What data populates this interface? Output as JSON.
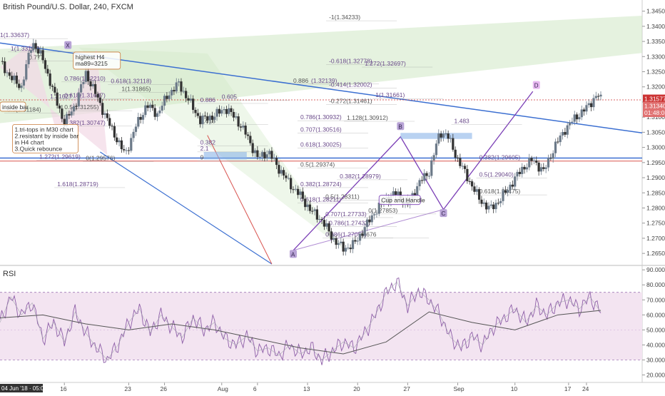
{
  "header": {
    "title": "British Pound/U.S. Dollar, 240, FXCM"
  },
  "rsi_panel": {
    "title": "RSI"
  },
  "colors": {
    "up": "#6c7a89",
    "down": "#333333",
    "trend_blue": "#3b6fd1",
    "fib_purple": "#7b3fb6",
    "red_line": "#d9534f",
    "green_fill": "#cfe8c4",
    "pink_fill": "#f2d9e6",
    "rsi_fill": "#f3e4f1",
    "rsi_line": "#8e5fa8",
    "rsi_ma": "#555555",
    "current_price_bg": "#cc3333"
  },
  "chart_data": [
    {
      "type": "candlestick",
      "title": "British Pound/U.S. Dollar, 240, FXCM",
      "x_tick_labels": [
        "04 Jun '18 · 05:00",
        "16",
        "23",
        "26",
        "Aug",
        "6",
        "13",
        "20",
        "27",
        "Sep",
        "10",
        "17",
        "24"
      ],
      "y_tick_labels": [
        "1.34500",
        "1.34000",
        "1.33500",
        "1.33000",
        "1.32500",
        "1.32000",
        "1.31500",
        "1.31000",
        "1.30500",
        "1.30000",
        "1.29500",
        "1.29000",
        "1.28500",
        "1.28000",
        "1.27500",
        "1.27000",
        "1.26500"
      ],
      "ylim": [
        1.2615,
        1.3468
      ],
      "close_path": [
        [
          0,
          1.3285
        ],
        [
          3,
          1.323
        ],
        [
          6,
          1.32
        ],
        [
          9,
          1.335
        ],
        [
          12,
          1.329
        ],
        [
          15,
          1.318
        ],
        [
          18,
          1.308
        ],
        [
          21,
          1.314
        ],
        [
          24,
          1.3245
        ],
        [
          27,
          1.317
        ],
        [
          30,
          1.309
        ],
        [
          33,
          1.302
        ],
        [
          35,
          1.2975
        ],
        [
          38,
          1.307
        ],
        [
          41,
          1.314
        ],
        [
          44,
          1.311
        ],
        [
          47,
          1.3175
        ],
        [
          50,
          1.321
        ],
        [
          53,
          1.315
        ],
        [
          56,
          1.309
        ],
        [
          60,
          1.3105
        ],
        [
          63,
          1.313
        ],
        [
          66,
          1.3095
        ],
        [
          69,
          1.304
        ],
        [
          72,
          1.2965
        ],
        [
          75,
          1.2985
        ],
        [
          78,
          1.293
        ],
        [
          81,
          1.288
        ],
        [
          84,
          1.284
        ],
        [
          87,
          1.279
        ],
        [
          90,
          1.276
        ],
        [
          93,
          1.27
        ],
        [
          96,
          1.2665
        ],
        [
          99,
          1.268
        ],
        [
          102,
          1.2735
        ],
        [
          105,
          1.279
        ],
        [
          108,
          1.283
        ],
        [
          111,
          1.285
        ],
        [
          114,
          1.281
        ],
        [
          117,
          1.288
        ],
        [
          120,
          1.292
        ],
        [
          123,
          1.305
        ],
        [
          125,
          1.3042
        ],
        [
          128,
          1.296
        ],
        [
          131,
          1.2895
        ],
        [
          134,
          1.283
        ],
        [
          137,
          1.2795
        ],
        [
          140,
          1.283
        ],
        [
          143,
          1.288
        ],
        [
          146,
          1.293
        ],
        [
          149,
          1.296
        ],
        [
          152,
          1.292
        ],
        [
          155,
          1.3
        ],
        [
          158,
          1.306
        ],
        [
          161,
          1.31
        ],
        [
          164,
          1.313
        ],
        [
          167,
          1.3175
        ],
        [
          168,
          1.3158
        ]
      ],
      "last_price": "1.31577",
      "last_price_secondary": "1.31340",
      "countdown": "01:48:05",
      "fib_labels": [
        "-1(1.34233)",
        "-0.618(1.32778)",
        "1.272(1.32697)",
        "0.886",
        "(1.32139)",
        "-0.414(1.32002)",
        "-0.272(1.31461)",
        "1(1.31661)",
        "0.786(1.30932)",
        "1.128(1.30912)",
        "0.707(1.30516)",
        "0.618(1.30025)",
        "0.5(1.29374)",
        "0.382(1.28979)",
        "0.382(1.28724)",
        "0.5(1.28311)",
        "0.618(1.28211)",
        "0.707(1.27733)",
        "0(1.27853)",
        "0.786(1.27432)",
        "0.886(1.27059)",
        "0.676",
        "0.382(1.29605)",
        "0.5(1.29040)",
        "0.618(1.28475)",
        "0.786(1.32210)",
        "0.618(1.31647)",
        "0.5(1.31255)",
        "0.382(1.30747)",
        "0.618(1.32118)",
        "1(1.31865)",
        "1.272(1.29619)",
        "1.618(1.28719)",
        "0(1.29576)",
        "1(1.33197)",
        "0.886",
        "0.618",
        "0.382",
        "0.605",
        "0.777",
        "1.483",
        "1.31627",
        "0.5(1.31184)",
        "1(1.33637)",
        "2.1",
        "9"
      ],
      "pattern_labels": [
        "A",
        "B",
        "C",
        "D",
        "X"
      ],
      "annotations": {
        "highest": "highest H4\nma89=3215",
        "notes": "1.tri-tops in M30 chart\n2.resistant by inside bar\nin H4 chart\n3.Quick rebounce",
        "inside_bar": "inside bar",
        "cup": "Cup and Handle"
      }
    },
    {
      "type": "line",
      "title": "RSI",
      "y_tick_labels": [
        "90.0000",
        "80.0000",
        "70.0000",
        "60.0000",
        "50.0000",
        "40.0000",
        "30.0000",
        "20.0000"
      ],
      "ylim": [
        15,
        92
      ],
      "bands": [
        30,
        75
      ],
      "rsi_path": [
        [
          0,
          55
        ],
        [
          3,
          72
        ],
        [
          6,
          60
        ],
        [
          9,
          68
        ],
        [
          12,
          44
        ],
        [
          15,
          55
        ],
        [
          18,
          42
        ],
        [
          21,
          62
        ],
        [
          24,
          48
        ],
        [
          27,
          38
        ],
        [
          30,
          30
        ],
        [
          33,
          40
        ],
        [
          36,
          55
        ],
        [
          39,
          64
        ],
        [
          42,
          48
        ],
        [
          45,
          60
        ],
        [
          48,
          52
        ],
        [
          51,
          45
        ],
        [
          54,
          58
        ],
        [
          57,
          50
        ],
        [
          60,
          55
        ],
        [
          63,
          44
        ],
        [
          66,
          40
        ],
        [
          69,
          46
        ],
        [
          72,
          36
        ],
        [
          75,
          38
        ],
        [
          78,
          33
        ],
        [
          81,
          40
        ],
        [
          84,
          34
        ],
        [
          87,
          38
        ],
        [
          90,
          30
        ],
        [
          93,
          36
        ],
        [
          96,
          42
        ],
        [
          99,
          38
        ],
        [
          102,
          48
        ],
        [
          105,
          60
        ],
        [
          108,
          75
        ],
        [
          111,
          82
        ],
        [
          114,
          66
        ],
        [
          117,
          76
        ],
        [
          120,
          70
        ],
        [
          123,
          60
        ],
        [
          126,
          45
        ],
        [
          129,
          38
        ],
        [
          132,
          46
        ],
        [
          135,
          40
        ],
        [
          138,
          52
        ],
        [
          141,
          58
        ],
        [
          144,
          64
        ],
        [
          147,
          55
        ],
        [
          150,
          66
        ],
        [
          153,
          60
        ],
        [
          156,
          68
        ],
        [
          159,
          70
        ],
        [
          162,
          64
        ],
        [
          165,
          72
        ],
        [
          168,
          62
        ]
      ],
      "ma_path": [
        [
          0,
          58
        ],
        [
          12,
          60
        ],
        [
          24,
          54
        ],
        [
          36,
          50
        ],
        [
          48,
          54
        ],
        [
          60,
          50
        ],
        [
          72,
          44
        ],
        [
          84,
          38
        ],
        [
          96,
          34
        ],
        [
          108,
          42
        ],
        [
          120,
          62
        ],
        [
          132,
          55
        ],
        [
          144,
          50
        ],
        [
          156,
          60
        ],
        [
          168,
          63
        ]
      ]
    }
  ]
}
